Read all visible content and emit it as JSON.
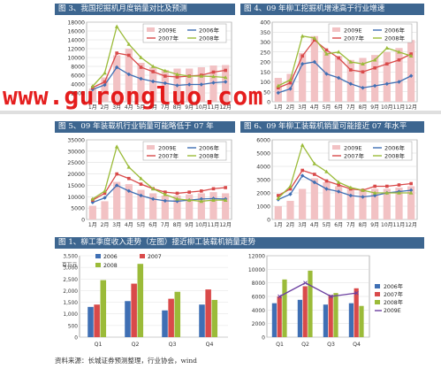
{
  "panels": {
    "p3": {
      "title": "图 3、我国挖掘机月度销量对比及预测"
    },
    "p4": {
      "title": "图 4、09 年柳工挖掘机增速高于行业增速"
    },
    "p5": {
      "title": "图 5、09 年装载机行业销量可能略低于 07 年"
    },
    "p6": {
      "title": "图 6、09 年柳工装载机销量可能接近 07 年水平"
    },
    "p1": {
      "title": "图 1、柳工季度收入走势（左图）接近柳工装载机销量走势"
    }
  },
  "source": "资料来源：长城证券预测整理，行业协会，wind",
  "watermark": "www.gurongluo.com",
  "colors": {
    "s2009": "#f2c2c4",
    "s2006": "#3f6fb4",
    "s2007": "#d94a4a",
    "s2008": "#9bbb39",
    "s2009line": "#6b3fa0"
  },
  "chart_data": [
    {
      "id": "p3",
      "type": "bar",
      "categories": [
        "1月",
        "2月",
        "3月",
        "4月",
        "5月",
        "6月",
        "7月",
        "8月",
        "9月",
        "10月",
        "11月",
        "12月"
      ],
      "ylim": [
        0,
        18000
      ],
      "yticks": [
        0,
        2000,
        4000,
        6000,
        8000,
        10000,
        12000,
        14000,
        16000,
        18000
      ],
      "bar_series": {
        "name": "2009E",
        "values": [
          3000,
          5500,
          10500,
          12000,
          8800,
          7800,
          7200,
          7500,
          7500,
          7800,
          8200,
          8300
        ]
      },
      "series": [
        {
          "name": "2006年",
          "values": [
            2800,
            3800,
            7800,
            6200,
            5200,
            4600,
            4200,
            3700,
            3900,
            3900,
            4300,
            4500
          ]
        },
        {
          "name": "2007年",
          "values": [
            3200,
            4500,
            11000,
            10500,
            7800,
            6800,
            5800,
            5600,
            5800,
            6000,
            6700,
            7100
          ]
        },
        {
          "name": "2008年",
          "values": [
            3500,
            6500,
            17000,
            13000,
            10000,
            8000,
            7000,
            6200,
            5800,
            5800,
            5700,
            5500
          ]
        }
      ],
      "legend": [
        {
          "name": "2009E",
          "key": "bar"
        },
        {
          "name": "2006年",
          "key": "s2006"
        },
        {
          "name": "2007年",
          "key": "s2007"
        },
        {
          "name": "2008年",
          "key": "s2008"
        }
      ]
    },
    {
      "id": "p4",
      "type": "bar",
      "categories": [
        "1月",
        "2月",
        "3月",
        "4月",
        "5月",
        "6月",
        "7月",
        "8月",
        "9月",
        "10月",
        "11月",
        "12月"
      ],
      "ylim": [
        0,
        400
      ],
      "yticks": [
        0,
        50,
        100,
        150,
        200,
        250,
        300,
        350,
        400
      ],
      "bar_series": {
        "name": "2009E",
        "values": [
          120,
          140,
          245,
          330,
          250,
          230,
          210,
          220,
          235,
          250,
          270,
          310
        ]
      },
      "series": [
        {
          "name": "2006年",
          "values": [
            45,
            65,
            190,
            200,
            140,
            120,
            90,
            70,
            80,
            90,
            100,
            130
          ]
        },
        {
          "name": "2007年",
          "values": [
            70,
            95,
            230,
            310,
            260,
            220,
            160,
            150,
            170,
            190,
            210,
            240
          ]
        },
        {
          "name": "2008年",
          "values": [
            80,
            110,
            330,
            320,
            240,
            250,
            200,
            190,
            210,
            270,
            250,
            230
          ]
        }
      ],
      "legend": [
        {
          "name": "2009E",
          "key": "bar"
        },
        {
          "name": "2006年",
          "key": "s2006"
        },
        {
          "name": "2007年",
          "key": "s2007"
        },
        {
          "name": "2008年",
          "key": "s2008"
        }
      ]
    },
    {
      "id": "p5",
      "type": "bar",
      "categories": [
        "1月",
        "2月",
        "3月",
        "4月",
        "5月",
        "6月",
        "7月",
        "8月",
        "9月",
        "10月",
        "11月",
        "12月"
      ],
      "ylim": [
        0,
        35000
      ],
      "yticks": [
        0,
        5000,
        10000,
        15000,
        20000,
        25000,
        30000,
        35000
      ],
      "bar_series": {
        "name": "2009E",
        "values": [
          6000,
          8000,
          16500,
          15500,
          13000,
          11500,
          10500,
          10500,
          11000,
          11500,
          12000,
          11500
        ]
      },
      "series": [
        {
          "name": "2006年",
          "values": [
            7500,
            9500,
            15000,
            12500,
            10500,
            9000,
            8200,
            8000,
            8500,
            9000,
            9200,
            9000
          ]
        },
        {
          "name": "2007年",
          "values": [
            8500,
            11500,
            20000,
            18000,
            15500,
            13500,
            12000,
            11500,
            12000,
            12500,
            13500,
            14000
          ]
        },
        {
          "name": "2008年",
          "values": [
            9000,
            12500,
            32000,
            23000,
            18000,
            13500,
            11000,
            9000,
            8500,
            8000,
            8500,
            8500
          ]
        }
      ],
      "legend": [
        {
          "name": "2009E",
          "key": "bar"
        },
        {
          "name": "2006年",
          "key": "s2006"
        },
        {
          "name": "2007年",
          "key": "s2007"
        },
        {
          "name": "2008年",
          "key": "s2008"
        }
      ]
    },
    {
      "id": "p6",
      "type": "bar",
      "categories": [
        "1月",
        "2月",
        "3月",
        "4月",
        "5月",
        "6月",
        "7月",
        "8月",
        "9月",
        "10月",
        "11月",
        "12月"
      ],
      "ylim": [
        0,
        6000
      ],
      "yticks": [
        0,
        1000,
        2000,
        3000,
        4000,
        5000,
        6000
      ],
      "bar_series": {
        "name": "2009E",
        "values": [
          1000,
          1400,
          2300,
          3100,
          2800,
          2500,
          2300,
          2200,
          2300,
          2300,
          2400,
          2500
        ]
      },
      "series": [
        {
          "name": "2006年",
          "values": [
            1500,
            1900,
            3300,
            2800,
            2300,
            2100,
            1800,
            1700,
            1800,
            2000,
            2100,
            2200
          ]
        },
        {
          "name": "2007年",
          "values": [
            1800,
            2300,
            3700,
            3400,
            2900,
            2600,
            2300,
            2200,
            2500,
            2500,
            2600,
            2700
          ]
        },
        {
          "name": "2008年",
          "values": [
            1600,
            2500,
            5600,
            4200,
            3600,
            2800,
            2400,
            2200,
            2000,
            2000,
            2000,
            2000
          ]
        }
      ],
      "legend": [
        {
          "name": "2009E",
          "key": "bar"
        },
        {
          "name": "2006年",
          "key": "s2006"
        },
        {
          "name": "2007年",
          "key": "s2007"
        },
        {
          "name": "2008年",
          "key": "s2008"
        }
      ]
    },
    {
      "id": "p1a",
      "type": "bar",
      "categories": [
        "Q1",
        "Q2",
        "Q3",
        "Q4"
      ],
      "ylim": [
        0,
        3.5
      ],
      "yticks": [
        0,
        0.5,
        1,
        1.5,
        2,
        2.5,
        3,
        3.5
      ],
      "ytick_labels": [
        "0",
        "500",
        "1,000",
        "1,500",
        "2,000",
        "2,500",
        "3,000",
        "3,500"
      ],
      "ylabel": "百万元",
      "series": [
        {
          "name": "2006",
          "values": [
            1.3,
            1.55,
            1.15,
            1.4
          ]
        },
        {
          "name": "2007",
          "values": [
            1.4,
            2.3,
            1.65,
            2.05
          ]
        },
        {
          "name": "2008",
          "values": [
            2.45,
            3.15,
            1.95,
            1.6
          ]
        }
      ],
      "legend": [
        {
          "name": "2006",
          "key": "s2006"
        },
        {
          "name": "2007",
          "key": "s2007"
        },
        {
          "name": "2008",
          "key": "s2008"
        }
      ]
    },
    {
      "id": "p1b",
      "type": "bar",
      "categories": [
        "Q1",
        "Q2",
        "Q3",
        "Q4"
      ],
      "ylim": [
        0,
        12000
      ],
      "yticks": [
        0,
        2000,
        4000,
        6000,
        8000,
        10000,
        12000
      ],
      "series": [
        {
          "name": "2006年",
          "values": [
            5000,
            5500,
            4800,
            5000
          ]
        },
        {
          "name": "2007年",
          "values": [
            6000,
            7500,
            6200,
            7200
          ]
        },
        {
          "name": "2008年",
          "values": [
            8500,
            9800,
            6500,
            4600
          ]
        }
      ],
      "line_series": {
        "name": "2009E",
        "values": [
          6000,
          8000,
          6000,
          6500
        ]
      },
      "legend": [
        {
          "name": "2006年",
          "key": "s2006"
        },
        {
          "name": "2007年",
          "key": "s2007"
        },
        {
          "name": "2008年",
          "key": "s2008"
        },
        {
          "name": "2009E",
          "key": "s2009line"
        }
      ]
    }
  ]
}
